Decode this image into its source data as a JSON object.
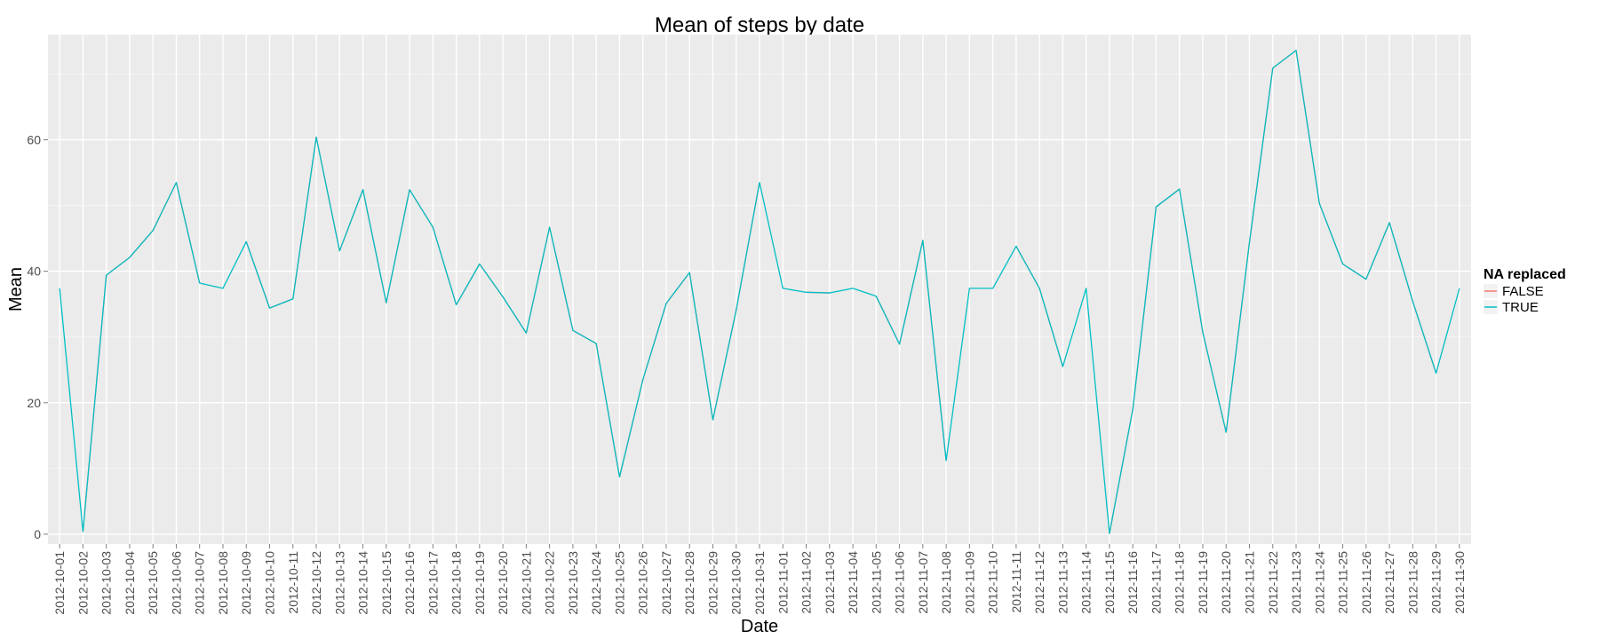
{
  "chart_data": {
    "type": "line",
    "title": "Mean of steps by date",
    "xlabel": "Date",
    "ylabel": "Mean",
    "ylim": [
      -1.5,
      76
    ],
    "yticks": [
      0,
      20,
      40,
      60
    ],
    "grid": true,
    "legend_position": "right",
    "legend_title": "NA replaced",
    "categories": [
      "2012-10-01",
      "2012-10-02",
      "2012-10-03",
      "2012-10-04",
      "2012-10-05",
      "2012-10-06",
      "2012-10-07",
      "2012-10-08",
      "2012-10-09",
      "2012-10-10",
      "2012-10-11",
      "2012-10-12",
      "2012-10-13",
      "2012-10-14",
      "2012-10-15",
      "2012-10-16",
      "2012-10-17",
      "2012-10-18",
      "2012-10-19",
      "2012-10-20",
      "2012-10-21",
      "2012-10-22",
      "2012-10-23",
      "2012-10-24",
      "2012-10-25",
      "2012-10-26",
      "2012-10-27",
      "2012-10-28",
      "2012-10-29",
      "2012-10-30",
      "2012-10-31",
      "2012-11-01",
      "2012-11-02",
      "2012-11-03",
      "2012-11-04",
      "2012-11-05",
      "2012-11-06",
      "2012-11-07",
      "2012-11-08",
      "2012-11-09",
      "2012-11-10",
      "2012-11-11",
      "2012-11-12",
      "2012-11-13",
      "2012-11-14",
      "2012-11-15",
      "2012-11-16",
      "2012-11-17",
      "2012-11-18",
      "2012-11-19",
      "2012-11-20",
      "2012-11-21",
      "2012-11-22",
      "2012-11-23",
      "2012-11-24",
      "2012-11-25",
      "2012-11-26",
      "2012-11-27",
      "2012-11-28",
      "2012-11-29",
      "2012-11-30"
    ],
    "series": [
      {
        "name": "FALSE",
        "color": "#F8766D",
        "values": [
          null,
          0.4,
          39.4,
          42.1,
          46.2,
          53.5,
          38.2,
          null,
          44.5,
          34.4,
          35.8,
          60.4,
          43.1,
          52.4,
          35.2,
          52.4,
          46.7,
          34.9,
          41.1,
          36.1,
          30.6,
          46.7,
          31.0,
          29.0,
          8.7,
          23.5,
          35.1,
          39.8,
          17.4,
          34.1,
          53.5,
          null,
          36.8,
          36.7,
          null,
          36.2,
          28.9,
          44.7,
          11.2,
          null,
          null,
          43.8,
          37.4,
          25.5,
          null,
          0.1,
          19.0,
          49.8,
          52.5,
          30.7,
          15.5,
          44.4,
          70.9,
          73.6,
          50.3,
          41.1,
          38.8,
          47.4,
          35.4,
          24.5,
          null
        ]
      },
      {
        "name": "TRUE",
        "color": "#00BFC4",
        "values": [
          37.4,
          0.4,
          39.4,
          42.1,
          46.2,
          53.5,
          38.2,
          37.4,
          44.5,
          34.4,
          35.8,
          60.4,
          43.1,
          52.4,
          35.2,
          52.4,
          46.7,
          34.9,
          41.1,
          36.1,
          30.6,
          46.7,
          31.0,
          29.0,
          8.7,
          23.5,
          35.1,
          39.8,
          17.4,
          34.1,
          53.5,
          37.4,
          36.8,
          36.7,
          37.4,
          36.2,
          28.9,
          44.7,
          11.2,
          37.4,
          37.4,
          43.8,
          37.4,
          25.5,
          37.4,
          0.1,
          19.0,
          49.8,
          52.5,
          30.7,
          15.5,
          44.4,
          70.9,
          73.6,
          50.3,
          41.1,
          38.8,
          47.4,
          35.4,
          24.5,
          37.4
        ]
      }
    ]
  }
}
